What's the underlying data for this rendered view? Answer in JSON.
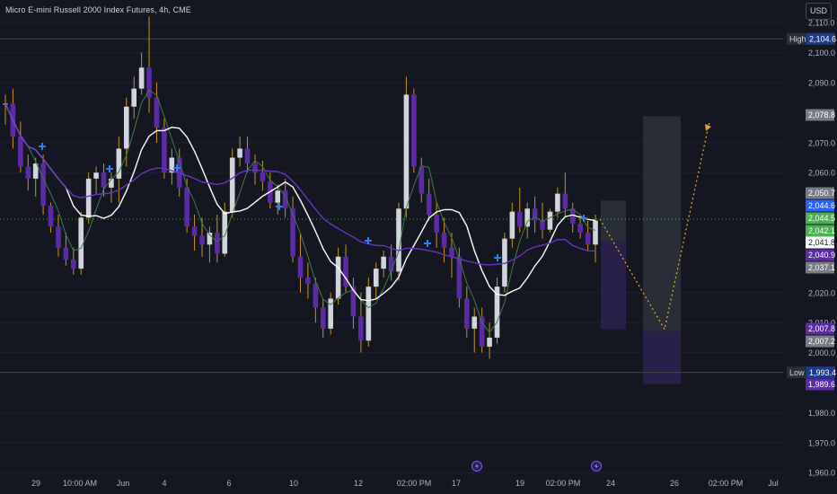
{
  "header": {
    "title": "Micro E-mini Russell 2000 Index Futures, 4h, CME",
    "currency": "USD"
  },
  "colors": {
    "background": "#141722",
    "bull_candle": "#d1d4dc",
    "bear_candle": "#5b2aa4",
    "wick": "#c7961a",
    "ma_fast": "#3f7a46",
    "ma_mid": "#ffffff",
    "ma_slow": "#6a35c2",
    "last_price_line": "#4caf50",
    "signal_marker": "#2f80ed",
    "projection": "#e0a526"
  },
  "chart_data": {
    "type": "candlestick",
    "symbol": "Micro E-mini Russell 2000 Index Futures",
    "timeframe": "4h",
    "exchange": "CME",
    "ylim": [
      1960,
      2116
    ],
    "x_ticks": [
      "29",
      "10:00 AM",
      "Jun",
      "4",
      "6",
      "10",
      "12",
      "02:00 PM",
      "17",
      "19",
      "02:00 PM",
      "24",
      "26",
      "02:00 PM",
      "Jul"
    ],
    "y_ticks": [
      "1,960.0",
      "1,970.0",
      "1,980.0",
      "2,000.0",
      "2,010.0",
      "2,020.0",
      "2,060.0",
      "2,070.0",
      "2,090.0",
      "2,100.0",
      "2,110.0"
    ],
    "high": {
      "label": "High",
      "value": "2,104.6"
    },
    "low": {
      "label": "Low",
      "value": "1,993.4"
    },
    "price_labels": [
      {
        "text": "2,078.8",
        "value": 2078.8,
        "color": "#787b86"
      },
      {
        "text": "2,050.7",
        "value": 2050.7,
        "color": "#787b86"
      },
      {
        "text": "2,044.6",
        "value": 2044.6,
        "color": "#2962ff"
      },
      {
        "text": "2,044.5",
        "value": 2044.5,
        "color": "#4caf50"
      },
      {
        "text": "2,042.1",
        "value": 2042.1,
        "color": "#4caf50"
      },
      {
        "text": "2,041.8",
        "value": 2041.8,
        "color": "#ffffff"
      },
      {
        "text": "2,040.9",
        "value": 2040.9,
        "color": "#5b2aa4"
      },
      {
        "text": "2,037.1",
        "value": 2037.1,
        "color": "#787b86"
      },
      {
        "text": "2,007.8",
        "value": 2007.8,
        "color": "#5b2aa4"
      },
      {
        "text": "2,007.2",
        "value": 2007.2,
        "color": "#787b86"
      },
      {
        "text": "1,989.6",
        "value": 1989.6,
        "color": "#5b2aa4"
      }
    ],
    "last_price": 2044.5,
    "candles": [
      [
        2083,
        2086,
        2076,
        2083
      ],
      [
        2083,
        2088,
        2068,
        2072
      ],
      [
        2072,
        2077,
        2060,
        2062
      ],
      [
        2062,
        2066,
        2054,
        2058
      ],
      [
        2058,
        2065,
        2052,
        2063
      ],
      [
        2063,
        2066,
        2046,
        2049
      ],
      [
        2049,
        2050,
        2040,
        2042
      ],
      [
        2042,
        2046,
        2032,
        2035
      ],
      [
        2035,
        2040,
        2029,
        2031
      ],
      [
        2031,
        2035,
        2026,
        2028
      ],
      [
        2028,
        2047,
        2026,
        2045
      ],
      [
        2045,
        2060,
        2043,
        2058
      ],
      [
        2058,
        2062,
        2053,
        2060
      ],
      [
        2060,
        2063,
        2052,
        2055
      ],
      [
        2055,
        2060,
        2050,
        2058
      ],
      [
        2058,
        2072,
        2050,
        2068
      ],
      [
        2068,
        2085,
        2062,
        2082
      ],
      [
        2082,
        2092,
        2078,
        2088
      ],
      [
        2088,
        2100,
        2086,
        2095
      ],
      [
        2095,
        2112,
        2080,
        2085
      ],
      [
        2085,
        2090,
        2070,
        2075
      ],
      [
        2075,
        2078,
        2058,
        2060
      ],
      [
        2060,
        2068,
        2056,
        2065
      ],
      [
        2065,
        2068,
        2052,
        2055
      ],
      [
        2055,
        2058,
        2040,
        2042
      ],
      [
        2042,
        2046,
        2034,
        2039
      ],
      [
        2039,
        2045,
        2032,
        2036
      ],
      [
        2036,
        2042,
        2030,
        2040
      ],
      [
        2040,
        2046,
        2030,
        2033
      ],
      [
        2033,
        2050,
        2032,
        2047
      ],
      [
        2047,
        2068,
        2045,
        2065
      ],
      [
        2065,
        2072,
        2062,
        2068
      ],
      [
        2068,
        2072,
        2060,
        2063
      ],
      [
        2063,
        2066,
        2056,
        2060
      ],
      [
        2060,
        2064,
        2054,
        2057
      ],
      [
        2057,
        2060,
        2048,
        2050
      ],
      [
        2050,
        2056,
        2046,
        2054
      ],
      [
        2054,
        2058,
        2045,
        2048
      ],
      [
        2048,
        2052,
        2030,
        2032
      ],
      [
        2032,
        2040,
        2020,
        2025
      ],
      [
        2025,
        2030,
        2018,
        2023
      ],
      [
        2023,
        2025,
        2010,
        2015
      ],
      [
        2015,
        2018,
        2005,
        2008
      ],
      [
        2008,
        2020,
        2006,
        2018
      ],
      [
        2018,
        2035,
        2016,
        2032
      ],
      [
        2032,
        2036,
        2020,
        2022
      ],
      [
        2022,
        2025,
        2008,
        2012
      ],
      [
        2012,
        2020,
        2000,
        2004
      ],
      [
        2004,
        2025,
        2002,
        2022
      ],
      [
        2022,
        2030,
        2018,
        2028
      ],
      [
        2028,
        2034,
        2025,
        2032
      ],
      [
        2032,
        2036,
        2024,
        2027
      ],
      [
        2027,
        2050,
        2024,
        2048
      ],
      [
        2048,
        2092,
        2045,
        2086
      ],
      [
        2086,
        2088,
        2060,
        2062
      ],
      [
        2062,
        2065,
        2050,
        2053
      ],
      [
        2053,
        2058,
        2044,
        2046
      ],
      [
        2046,
        2050,
        2035,
        2040
      ],
      [
        2040,
        2045,
        2030,
        2035
      ],
      [
        2035,
        2040,
        2025,
        2032
      ],
      [
        2032,
        2035,
        2015,
        2018
      ],
      [
        2018,
        2022,
        2005,
        2008
      ],
      [
        2008,
        2015,
        2000,
        2012
      ],
      [
        2012,
        2015,
        2000,
        2002
      ],
      [
        2002,
        2010,
        1998,
        2005
      ],
      [
        2005,
        2025,
        2003,
        2022
      ],
      [
        2022,
        2040,
        2020,
        2038
      ],
      [
        2038,
        2050,
        2035,
        2047
      ],
      [
        2047,
        2055,
        2040,
        2042
      ],
      [
        2042,
        2050,
        2038,
        2048
      ],
      [
        2048,
        2052,
        2040,
        2044
      ],
      [
        2044,
        2050,
        2038,
        2041
      ],
      [
        2041,
        2048,
        2040,
        2047
      ],
      [
        2047,
        2055,
        2045,
        2053
      ],
      [
        2053,
        2060,
        2045,
        2048
      ],
      [
        2048,
        2050,
        2040,
        2043
      ],
      [
        2043,
        2046,
        2038,
        2040
      ],
      [
        2040,
        2044,
        2034,
        2036
      ],
      [
        2036,
        2046,
        2030,
        2044
      ]
    ]
  }
}
